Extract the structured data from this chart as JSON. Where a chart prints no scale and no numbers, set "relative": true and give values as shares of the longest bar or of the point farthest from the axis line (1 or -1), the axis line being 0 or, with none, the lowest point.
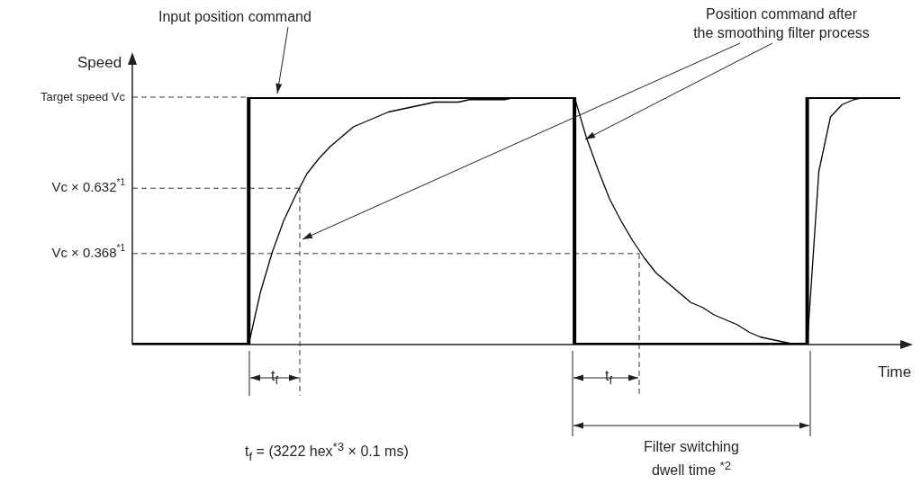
{
  "chart_data": {
    "type": "line",
    "xlabel": "Time",
    "ylabel": "Speed",
    "relative": true,
    "categories": [
      null,
      null,
      null,
      null,
      null,
      null,
      null,
      null,
      null,
      null,
      null,
      null,
      null,
      null,
      null,
      null,
      null,
      null,
      null,
      null,
      null,
      null,
      null,
      null,
      null,
      null,
      null,
      null,
      null,
      null,
      null,
      null,
      null,
      null,
      null,
      null,
      null,
      null,
      null,
      null,
      null,
      null,
      null,
      null,
      null,
      null,
      null,
      null,
      null,
      null,
      null,
      null,
      null,
      null,
      null,
      null,
      null,
      null,
      null,
      null,
      null,
      null,
      null,
      null,
      null,
      null,
      null
    ],
    "legend": false,
    "marker": "none",
    "series": [
      {
        "type": "step",
        "color": "#000000",
        "values": [
          0,
          0,
          0,
          0,
          0,
          0,
          0,
          0,
          0,
          0,
          0,
          1,
          1,
          1,
          1,
          1,
          1,
          1,
          1,
          1,
          1,
          1,
          1,
          1,
          1,
          1,
          1,
          1,
          1,
          1,
          1,
          1,
          1,
          1,
          1,
          1,
          1,
          1,
          1,
          0,
          0,
          0,
          0,
          0,
          0,
          0,
          0,
          0,
          0,
          0,
          0,
          0,
          0,
          0,
          0,
          0,
          0,
          0,
          0,
          1,
          1,
          1,
          1,
          1,
          1,
          1,
          1
        ]
      },
      {
        "type": "line",
        "color": "#000000",
        "values": [
          null,
          null,
          null,
          null,
          null,
          null,
          null,
          null,
          null,
          null,
          0,
          0.21,
          0.37,
          0.5,
          0.6,
          0.69,
          0.75,
          0.8,
          0.84,
          0.88,
          0.9,
          0.92,
          0.94,
          0.95,
          0.96,
          0.97,
          0.98,
          0.98,
          0.98,
          0.99,
          0.99,
          0.99,
          0.99,
          1,
          1,
          1,
          1,
          1,
          1,
          0.84,
          0.71,
          0.59,
          0.5,
          0.42,
          0.35,
          0.29,
          0.25,
          0.21,
          0.17,
          0.15,
          0.12,
          0.1,
          0.08,
          0.05,
          0.03,
          0.02,
          0.01,
          0,
          0,
          0.7,
          0.92,
          0.97,
          0.99,
          1,
          1,
          1,
          1
        ]
      }
    ],
    "ref_lines": [
      {
        "axis": "y",
        "value": 1,
        "label": "Target speed Vc",
        "line_style": "dashed"
      },
      {
        "axis": "y",
        "value": 0.632,
        "label": "Vc × 0.632$^{*1}$",
        "line_style": "dashed"
      },
      {
        "axis": "y",
        "value": 0.368,
        "label": "Vc × 0.368$^{*1}$",
        "line_style": "dashed"
      }
    ],
    "annotations": [
      "Input position command",
      "Position command after\nthe smoothing filter process",
      "t$_{f}$",
      "t$_{f}$",
      "t$_{f}$ = (3222 hex$^{*3}$ × 0.1 ms)",
      "Filter switching\ndwell time $^{*2}$"
    ]
  }
}
